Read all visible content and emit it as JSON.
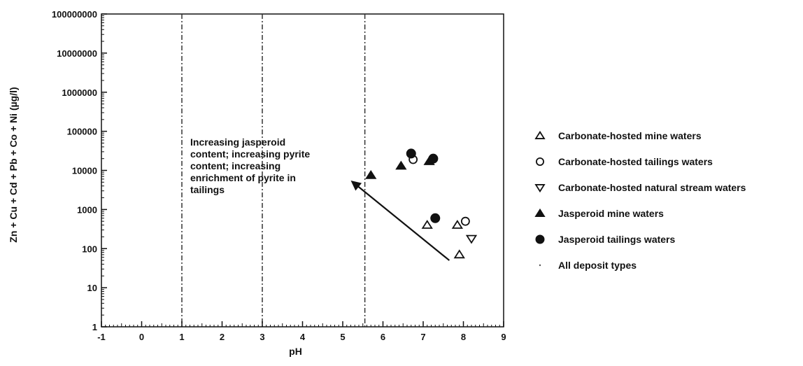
{
  "chart_data": {
    "type": "scatter",
    "title": "",
    "xlabel": "pH",
    "ylabel": "Zn + Cu + Cd + Pb + Co + Ni (µg/l)",
    "xlim": [
      -1,
      9
    ],
    "ylim": [
      1,
      100000000
    ],
    "y_scale": "log",
    "x_ticks": [
      "-1",
      "0",
      "1",
      "2",
      "3",
      "4",
      "5",
      "6",
      "7",
      "8",
      "9"
    ],
    "y_ticks": [
      "1",
      "10",
      "100",
      "1000",
      "10000",
      "100000",
      "1000000",
      "10000000",
      "100000000"
    ],
    "legend_placement": "right",
    "grid": false,
    "series": [
      {
        "name": "Carbonate-hosted mine waters",
        "marker": "triangle-open",
        "points": [
          {
            "x": 7.1,
            "y": 400
          },
          {
            "x": 7.85,
            "y": 400
          },
          {
            "x": 7.9,
            "y": 70
          }
        ]
      },
      {
        "name": "Carbonate-hosted tailings waters",
        "marker": "circle-open",
        "points": [
          {
            "x": 6.75,
            "y": 19000
          },
          {
            "x": 8.05,
            "y": 500
          }
        ]
      },
      {
        "name": "Carbonate-hosted natural stream waters",
        "marker": "triangle-down-open",
        "points": [
          {
            "x": 8.2,
            "y": 180
          }
        ]
      },
      {
        "name": "Jasperoid mine waters",
        "marker": "triangle-filled",
        "points": [
          {
            "x": 5.7,
            "y": 7500
          },
          {
            "x": 6.45,
            "y": 13000
          },
          {
            "x": 7.15,
            "y": 17000
          }
        ]
      },
      {
        "name": "Jasperoid tailings waters",
        "marker": "circle-filled",
        "points": [
          {
            "x": 6.7,
            "y": 27000
          },
          {
            "x": 7.25,
            "y": 20000
          },
          {
            "x": 7.3,
            "y": 600
          }
        ]
      },
      {
        "name": "All deposit types",
        "marker": "dot",
        "points": []
      }
    ],
    "vertical_lines": [
      {
        "x": 1.0,
        "style": "dash-dot"
      },
      {
        "x": 3.0,
        "style": "dash-dot"
      },
      {
        "x": 5.55,
        "style": "dash-dot"
      }
    ],
    "annotation": {
      "lines": [
        "Increasing jasperoid",
        "content; increasing pyrite",
        "content; increasing",
        "enrichment of pyrite in",
        "tailings"
      ],
      "arrow_from": {
        "x": 7.65,
        "y": 50
      },
      "arrow_to": {
        "x": 5.2,
        "y": 5500
      }
    }
  }
}
